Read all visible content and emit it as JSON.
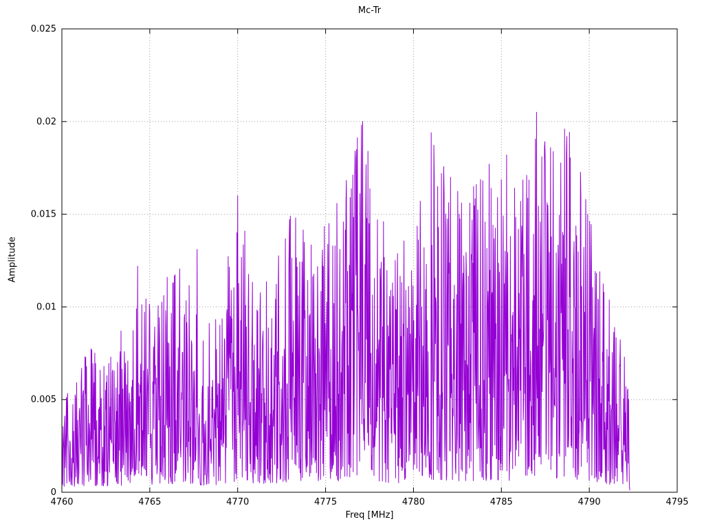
{
  "page": {
    "background": "#ffffff"
  },
  "chart_data": {
    "type": "line",
    "title": "Mc-Tr",
    "xlabel": "Freq [MHz]",
    "ylabel": "Amplitude",
    "xlim": [
      4760,
      4795
    ],
    "ylim": [
      0,
      0.025
    ],
    "xticks": [
      4760,
      4765,
      4770,
      4775,
      4780,
      4785,
      4790,
      4795
    ],
    "xtick_labels": [
      "4760",
      "4765",
      "4770",
      "4775",
      "4780",
      "4785",
      "4790",
      "4795"
    ],
    "yticks": [
      0,
      0.005,
      0.01,
      0.015,
      0.02,
      0.025
    ],
    "ytick_labels": [
      "0",
      "0.005",
      "0.01",
      "0.015",
      "0.02",
      "0.025"
    ],
    "grid": true,
    "grid_style": "dotted",
    "grid_color": "#999999",
    "border_color": "#000000",
    "legend": "none",
    "series": [
      {
        "name": "Mc-Tr",
        "color": "#9400d3",
        "x_start": 4760.0,
        "x_end": 4792.3,
        "num_points": 1500,
        "seed": 20240613,
        "noise_exponent": 1.55,
        "noise_floor": 0.0001,
        "envelope": [
          [
            4760.0,
            0.005
          ],
          [
            4761.0,
            0.0075
          ],
          [
            4762.0,
            0.008
          ],
          [
            4763.0,
            0.008
          ],
          [
            4764.0,
            0.01
          ],
          [
            4765.0,
            0.0105
          ],
          [
            4766.0,
            0.0116
          ],
          [
            4767.0,
            0.013
          ],
          [
            4768.0,
            0.0092
          ],
          [
            4769.0,
            0.0102
          ],
          [
            4770.0,
            0.016
          ],
          [
            4771.0,
            0.0116
          ],
          [
            4772.0,
            0.0116
          ],
          [
            4773.0,
            0.015
          ],
          [
            4774.0,
            0.0138
          ],
          [
            4775.0,
            0.0146
          ],
          [
            4776.0,
            0.016
          ],
          [
            4777.0,
            0.02
          ],
          [
            4778.0,
            0.0146
          ],
          [
            4779.0,
            0.0138
          ],
          [
            4780.0,
            0.0133
          ],
          [
            4781.0,
            0.0194
          ],
          [
            4782.0,
            0.0172
          ],
          [
            4783.0,
            0.0157
          ],
          [
            4784.0,
            0.0177
          ],
          [
            4785.0,
            0.0182
          ],
          [
            4786.0,
            0.0157
          ],
          [
            4787.0,
            0.0205
          ],
          [
            4788.0,
            0.0182
          ],
          [
            4789.0,
            0.0196
          ],
          [
            4790.0,
            0.015
          ],
          [
            4791.0,
            0.0112
          ],
          [
            4792.3,
            0.0075
          ]
        ],
        "peaks": [
          [
            4764.3,
            0.0122
          ],
          [
            4766.0,
            0.0116
          ],
          [
            4767.7,
            0.0131
          ],
          [
            4770.0,
            0.016
          ],
          [
            4770.4,
            0.0141
          ],
          [
            4773.0,
            0.0149
          ],
          [
            4773.3,
            0.0148
          ],
          [
            4775.2,
            0.0145
          ],
          [
            4776.4,
            0.0159
          ],
          [
            4777.1,
            0.02
          ],
          [
            4777.4,
            0.0184
          ],
          [
            4778.3,
            0.0146
          ],
          [
            4780.6,
            0.0132
          ],
          [
            4781.0,
            0.0194
          ],
          [
            4781.6,
            0.0172
          ],
          [
            4782.1,
            0.017
          ],
          [
            4783.2,
            0.0156
          ],
          [
            4784.3,
            0.0177
          ],
          [
            4785.3,
            0.0182
          ],
          [
            4786.1,
            0.0157
          ],
          [
            4787.0,
            0.0205
          ],
          [
            4787.3,
            0.0181
          ],
          [
            4788.6,
            0.0196
          ],
          [
            4789.9,
            0.015
          ],
          [
            4790.6,
            0.0119
          ],
          [
            4792.0,
            0.0073
          ]
        ]
      }
    ]
  }
}
